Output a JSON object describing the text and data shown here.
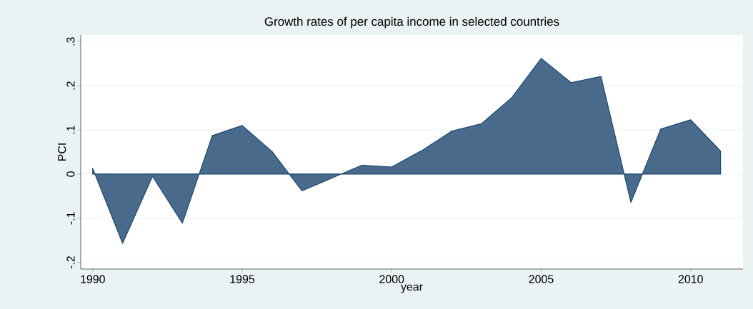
{
  "chart_data": {
    "type": "area",
    "title": "Growth rates of per capita income in selected countries",
    "xlabel": "year",
    "ylabel": "PCI",
    "x": [
      1990,
      1991,
      1992,
      1993,
      1994,
      1995,
      1996,
      1997,
      1998,
      1999,
      2000,
      2001,
      2002,
      2003,
      2004,
      2005,
      2006,
      2007,
      2008,
      2009,
      2010,
      2011
    ],
    "values": [
      0.013,
      -0.157,
      -0.005,
      -0.111,
      0.087,
      0.11,
      0.051,
      -0.038,
      -0.009,
      0.02,
      0.016,
      0.053,
      0.097,
      0.114,
      0.172,
      0.262,
      0.207,
      0.221,
      -0.064,
      0.102,
      0.123,
      0.052
    ],
    "color": "#4a6a8c",
    "xlim": [
      1989.6,
      2011.75
    ],
    "ylim": [
      -0.215,
      0.315
    ],
    "xticks": [
      1990,
      1995,
      2000,
      2005,
      2010
    ],
    "yticks": [
      {
        "value": -0.2,
        "label": "-.2"
      },
      {
        "value": -0.1,
        "label": "-.1"
      },
      0,
      {
        "value": 0.1,
        "label": ".1"
      },
      {
        "value": 0.2,
        "label": ".2"
      },
      {
        "value": 0.3,
        "label": ".3"
      }
    ],
    "grid": "y"
  }
}
